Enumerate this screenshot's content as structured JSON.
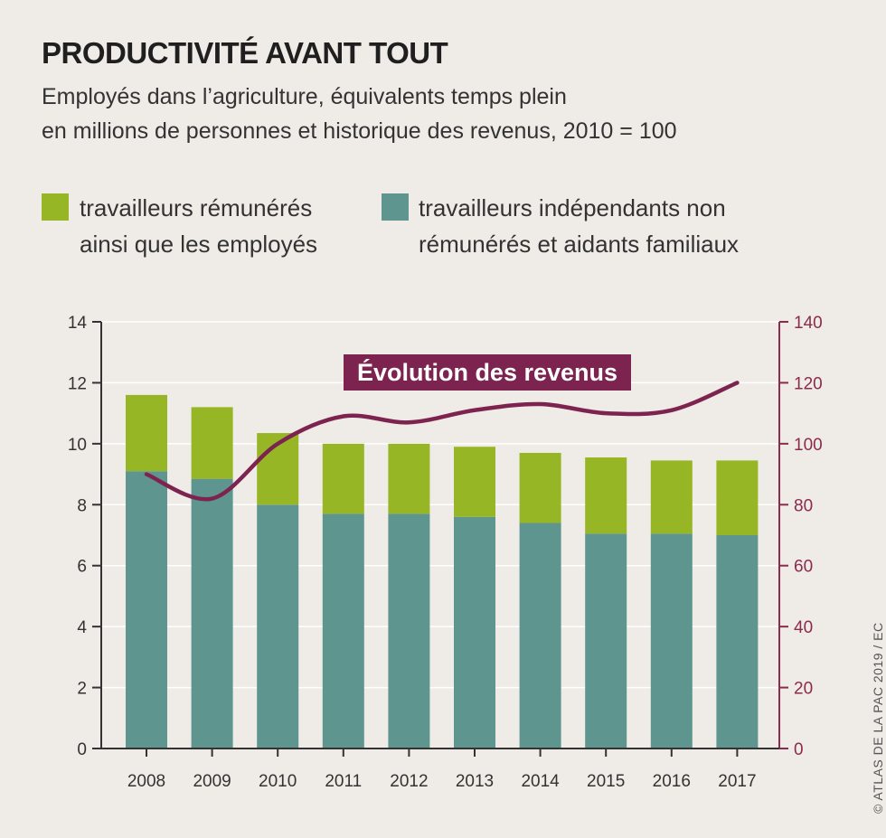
{
  "title": "PRODUCTIVITÉ AVANT TOUT",
  "subtitle_line1": "Employés dans l’agriculture, équivalents temps plein",
  "subtitle_line2": "en millions de personnes et historique des revenus, 2010 = 100",
  "legend": {
    "paid": {
      "line1": "travailleurs rémunérés",
      "line2": "ainsi que les employés",
      "color": "#97b625"
    },
    "self": {
      "line1": "travailleurs indépendants non",
      "line2": "rémunérés et aidants familiaux",
      "color": "#5f958f"
    }
  },
  "annotation": "Évolution des revenus",
  "credit": "© ATLAS DE LA PAC 2019 / EC",
  "colors": {
    "line": "#7d2350",
    "right_axis": "#8b2b4e",
    "axis": "#333333"
  },
  "chart_data": {
    "type": "bar",
    "stacked": true,
    "categories": [
      "2008",
      "2009",
      "2010",
      "2011",
      "2012",
      "2013",
      "2014",
      "2015",
      "2016",
      "2017"
    ],
    "series": [
      {
        "name": "travailleurs indépendants non rémunérés et aidants familiaux",
        "values": [
          9.1,
          8.85,
          8.0,
          7.7,
          7.7,
          7.6,
          7.4,
          7.05,
          7.05,
          7.0
        ]
      },
      {
        "name": "travailleurs rémunérés ainsi que les employés",
        "values": [
          2.5,
          2.35,
          2.35,
          2.3,
          2.3,
          2.3,
          2.3,
          2.5,
          2.4,
          2.45
        ]
      }
    ],
    "line_series": {
      "name": "Évolution des revenus",
      "axis": "right",
      "values": [
        90,
        82,
        100,
        109,
        107,
        111,
        113,
        110,
        111,
        120
      ]
    },
    "ylim_left": [
      0,
      14
    ],
    "yticks_left": [
      0,
      2,
      4,
      6,
      8,
      10,
      12,
      14
    ],
    "ylim_right": [
      0,
      140
    ],
    "yticks_right": [
      0,
      20,
      40,
      60,
      80,
      100,
      120,
      140
    ]
  }
}
